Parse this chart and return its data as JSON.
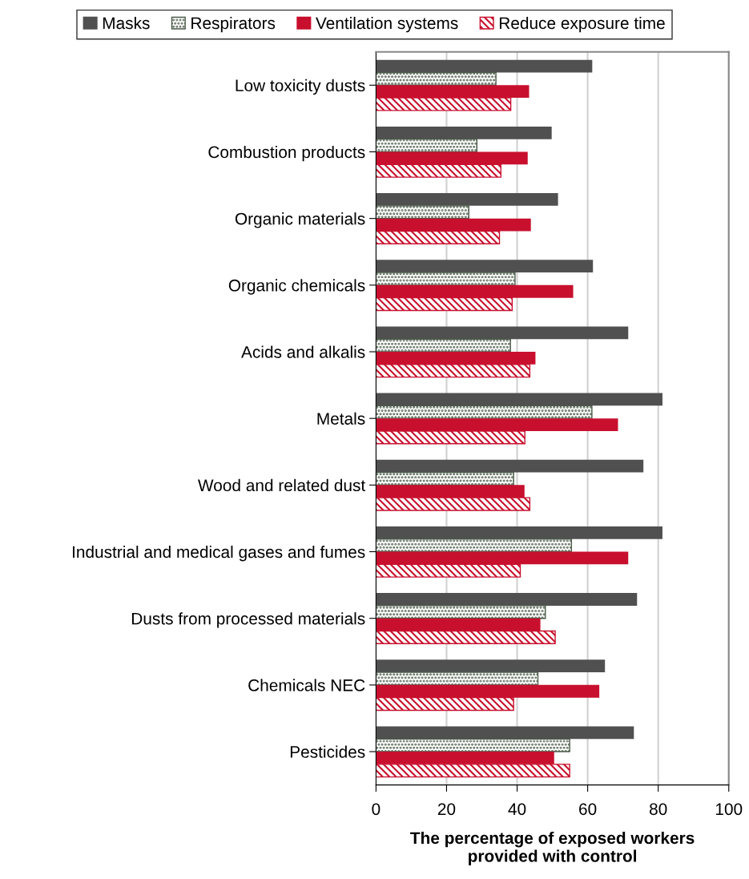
{
  "chart_data": {
    "type": "bar",
    "orientation": "horizontal",
    "xlabel": "The percentage of exposed workers\nprovided with control",
    "categories": [
      "Low toxicity dusts",
      "Combustion products",
      "Organic materials",
      "Organic chemicals",
      "Acids and alkalis",
      "Metals",
      "Wood and related dust",
      "Industrial and medical gases and fumes",
      "Dusts from processed materials",
      "Chemicals NEC",
      "Pesticides"
    ],
    "series": [
      {
        "name": "Masks",
        "color": "#505050",
        "values": [
          61.3,
          49.8,
          51.6,
          61.5,
          71.5,
          81.2,
          75.8,
          81.2,
          74.0,
          64.9,
          73.1
        ]
      },
      {
        "name": "Respirators",
        "color": "#4a5a48",
        "values": [
          34.0,
          28.6,
          26.3,
          39.4,
          38.1,
          61.2,
          39.0,
          55.4,
          48.0,
          45.9,
          54.9
        ]
      },
      {
        "name": "Ventilation systems",
        "color": "#c8102e",
        "values": [
          43.4,
          43.0,
          43.9,
          55.9,
          45.2,
          68.6,
          42.1,
          71.5,
          46.6,
          63.3,
          50.5
        ]
      },
      {
        "name": "Reduce exposure time",
        "color": "#c8102e",
        "values": [
          38.2,
          35.4,
          35.0,
          38.6,
          43.6,
          42.2,
          43.6,
          40.9,
          50.8,
          39.0,
          54.9
        ]
      }
    ],
    "xlim": [
      0,
      100
    ],
    "xticks": [
      0,
      20,
      40,
      60,
      80,
      100
    ],
    "grid": "x",
    "legend": "top"
  }
}
